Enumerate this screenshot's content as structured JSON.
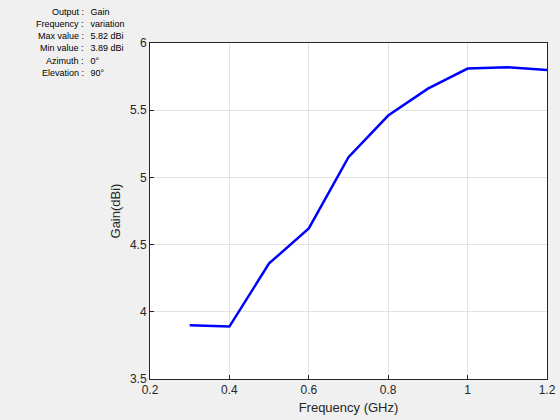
{
  "chart_data": {
    "type": "line",
    "x_label": "Frequency (GHz)",
    "y_label": "Gain(dBi)",
    "x": [
      0.3,
      0.4,
      0.5,
      0.6,
      0.7,
      0.8,
      0.9,
      1.0,
      1.1,
      1.2
    ],
    "values": [
      3.9,
      3.89,
      4.36,
      4.62,
      5.15,
      5.46,
      5.66,
      5.81,
      5.82,
      5.8
    ],
    "color": "#0000ff",
    "xlim": [
      0.2,
      1.2
    ],
    "xticks": [
      0.2,
      0.4,
      0.6,
      0.8,
      1,
      1.2
    ],
    "ylim": [
      3.5,
      6
    ],
    "yticks": [
      3.5,
      4,
      4.5,
      5,
      5.5,
      6
    ],
    "grid": true,
    "annotations": [
      "Output : Gain",
      "Frequency : variation",
      "Max value : 5.82 dBi",
      "Min value : 3.89 dBi",
      "Azimuth : 0°",
      "Elevation : 90°"
    ]
  }
}
